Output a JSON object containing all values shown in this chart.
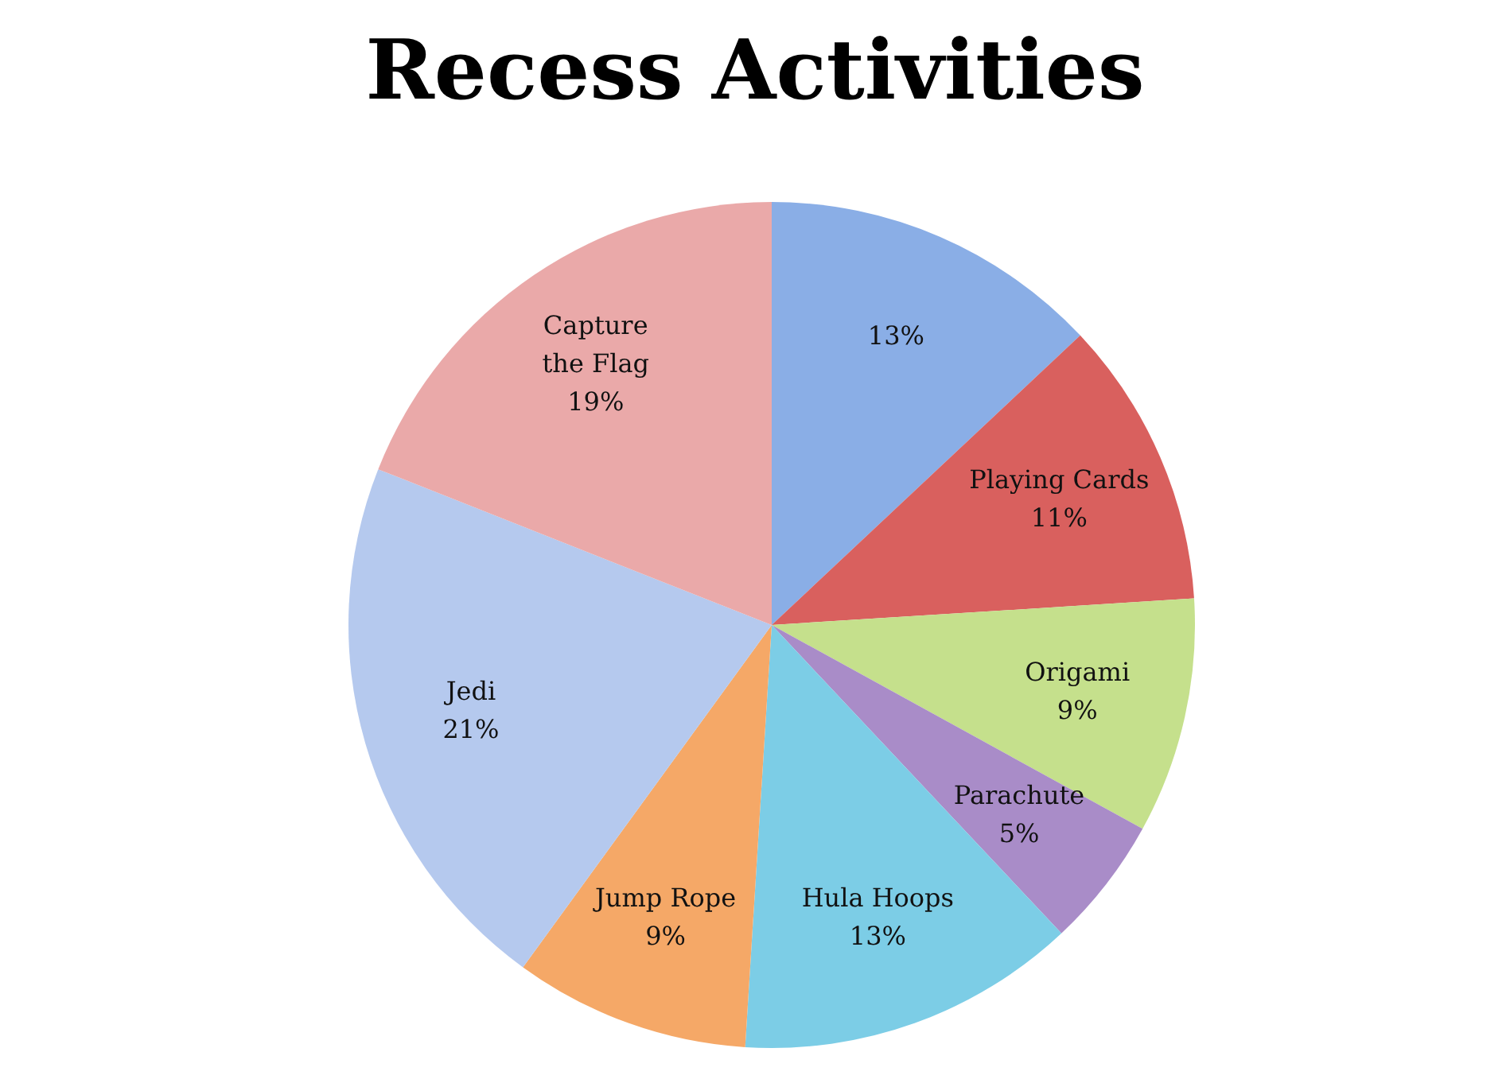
{
  "chart_data": {
    "type": "pie",
    "title": "Recess Activities",
    "categories": [
      null,
      "Playing Cards",
      "Origami",
      "Parachute",
      "Hula Hoops",
      "Jump Rope",
      "Jedi",
      "Capture the Flag"
    ],
    "values": [
      13,
      11,
      9,
      5,
      13,
      9,
      21,
      19
    ],
    "value_labels": [
      "13%",
      "11%",
      "9%",
      "5%",
      "13%",
      "9%",
      "21%",
      "19%"
    ],
    "colors": [
      "#8aaee6",
      "#d9605e",
      "#c5e08c",
      "#a98cc8",
      "#7ccde6",
      "#f5a867",
      "#b5c9ee",
      "#eaa9a9"
    ]
  }
}
